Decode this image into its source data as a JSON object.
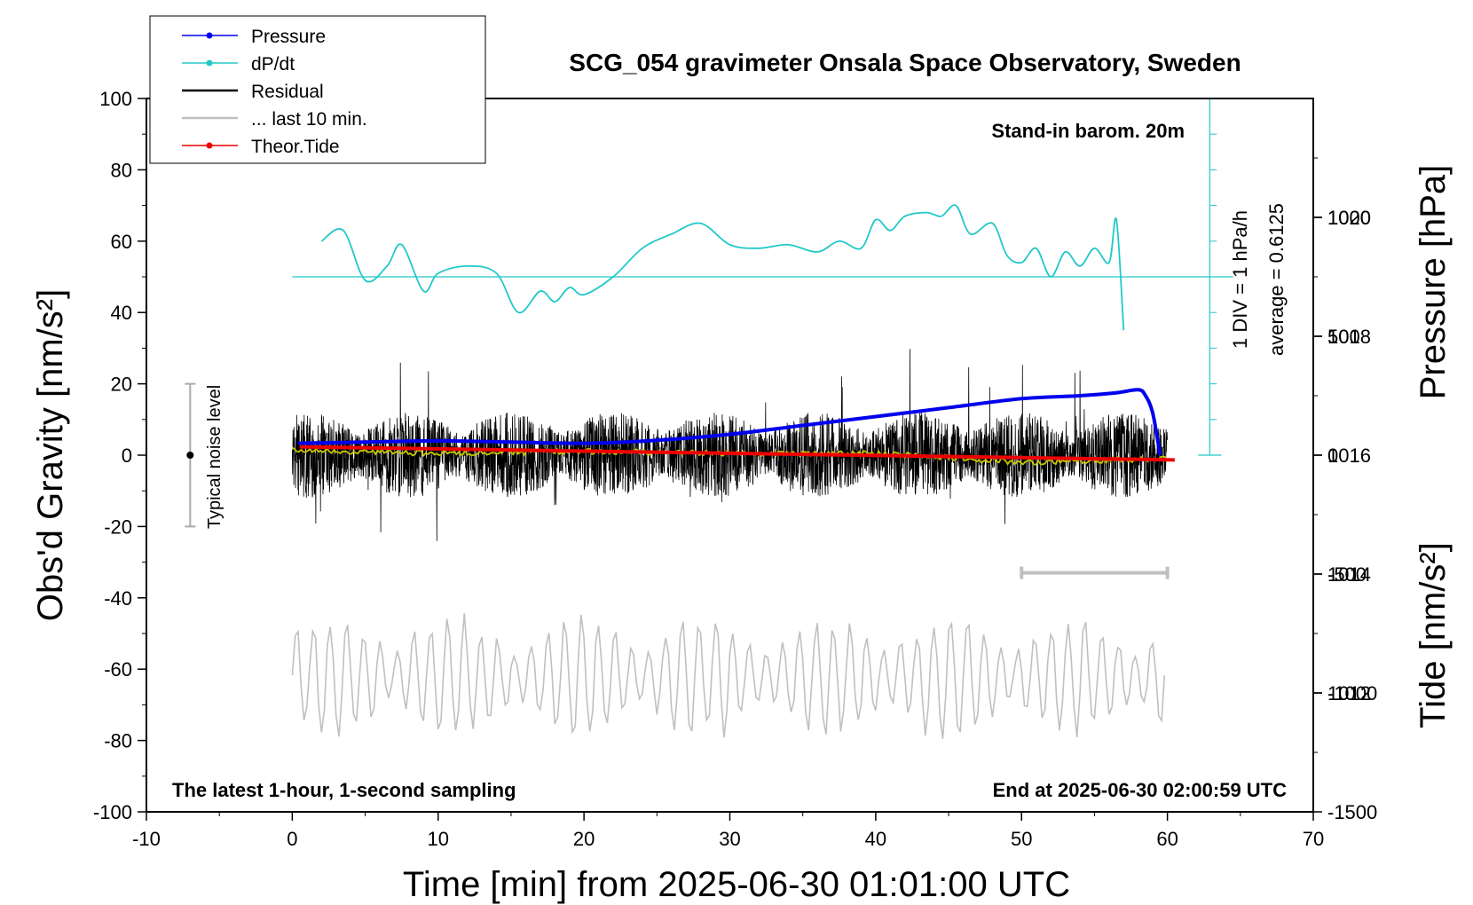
{
  "chart_data": {
    "type": "line",
    "title": "SCG_054 gravimeter Onsala Space Observatory, Sweden",
    "xlabel": "Time [min] from 2025-06-30 01:01:00 UTC",
    "ylabel_left": "Obs'd Gravity [nm/s²]",
    "ylabel_right_top": "Pressure [hPa]",
    "ylabel_right_bottom": "Tide [nm/s²]",
    "xlim": [
      -10,
      70
    ],
    "ylim": [
      -100,
      100
    ],
    "pressure_lim": [
      1010,
      1022
    ],
    "tide_lim": [
      -1500,
      1500
    ],
    "x_ticks": [
      "-10",
      "0",
      "10",
      "20",
      "30",
      "40",
      "50",
      "60",
      "70"
    ],
    "y_ticks": [
      "-100",
      "-80",
      "-60",
      "-40",
      "-20",
      "0",
      "20",
      "40",
      "60",
      "80",
      "100"
    ],
    "pressure_ticks": [
      "1012",
      "1014",
      "1016",
      "1018",
      "1020"
    ],
    "tide_ticks": [
      "-1500",
      "-1000",
      "-500",
      "0",
      "500",
      "1000"
    ],
    "legend": [
      "Pressure",
      "dP/dt",
      "Residual",
      "... last 10 min.",
      "Theor.Tide"
    ],
    "annotations": {
      "barometer": "Stand-in barom. 20m",
      "dpdt_scale": "1 DIV = 1 hPa/h",
      "dpdt_average": "average = 0.6125",
      "noise": "Typical noise level",
      "sampling": "The latest 1-hour, 1-second sampling",
      "end_time": "End at 2025-06-30 02:00:59 UTC"
    },
    "series": [
      {
        "name": "Pressure",
        "color": "#0000ee",
        "axis": "pressure",
        "x": [
          0.4,
          5,
          10,
          15,
          20,
          25,
          30,
          35,
          40,
          45,
          50,
          54,
          56.5,
          58,
          58.5,
          59,
          59.5
        ],
        "values": [
          1016.2,
          1016.22,
          1016.24,
          1016.22,
          1016.2,
          1016.25,
          1016.35,
          1016.5,
          1016.65,
          1016.8,
          1016.95,
          1017.0,
          1017.05,
          1017.1,
          1017.0,
          1016.7,
          1016.0
        ]
      },
      {
        "name": "dP/dt",
        "color": "#22c8c8",
        "axis": "gravity",
        "x": [
          2,
          3.5,
          5,
          6.5,
          7.5,
          9,
          10,
          12,
          14,
          15.5,
          17,
          18,
          19,
          20,
          22,
          24,
          26,
          28,
          30,
          32,
          34,
          36,
          37.5,
          39,
          40,
          41,
          42,
          43.5,
          44.5,
          45.5,
          46.5,
          48,
          49,
          50,
          51,
          52,
          53,
          54,
          55,
          56,
          56.5,
          57
        ],
        "values": [
          60,
          63,
          49,
          53,
          59,
          46,
          51,
          53,
          51,
          40,
          46,
          43,
          47,
          45,
          50,
          58,
          62,
          65,
          59,
          58,
          59,
          57,
          60,
          58,
          66,
          63,
          67,
          68,
          67,
          70,
          62,
          65,
          56,
          54,
          58,
          50,
          57,
          53,
          58,
          54,
          66,
          35
        ]
      },
      {
        "name": "Residual",
        "color": "#000000",
        "axis": "gravity",
        "generated": "1-second residual, roughly +/-15 nm/s2 about 0 over 0-60 min, extremes about +30 and -31",
        "x": [
          0,
          60
        ],
        "values": [
          0,
          0
        ]
      },
      {
        "name": "Residual mean",
        "color": "#c8c800",
        "axis": "gravity",
        "x": [
          0,
          10,
          20,
          30,
          40,
          50,
          60
        ],
        "values": [
          1.5,
          0.5,
          1,
          0.5,
          0.5,
          -2,
          -1
        ]
      },
      {
        "name": "... last 10 min.",
        "color": "#c0c0c0",
        "axis": "gravity",
        "generated": "overlaid oscillation centred near -62 nm/s2 with amplitude up to about 20 nm/s2, x 0-60",
        "x": [
          0,
          60
        ],
        "values": [
          -62,
          -62
        ]
      },
      {
        "name": "Theor.Tide",
        "color": "#ee0000",
        "axis": "tide",
        "x": [
          0.5,
          60.5
        ],
        "values": [
          35,
          -20
        ]
      }
    ]
  },
  "markers": {
    "last10_bar_x": [
      50,
      60
    ],
    "noise_bar": {
      "x": -7,
      "y_range": [
        -20,
        20
      ]
    }
  }
}
